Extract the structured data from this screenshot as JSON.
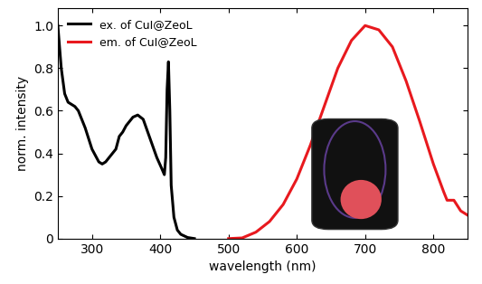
{
  "chart_data": {
    "type": "line",
    "x_label": "wavelength (nm)",
    "y_label": "norm. intensity",
    "xlim": [
      250,
      850
    ],
    "xticks": [
      300,
      400,
      500,
      600,
      700,
      800
    ],
    "ylim": [
      0,
      1.08
    ],
    "yticks": [
      0,
      0.2,
      0.4,
      0.6,
      0.8,
      1.0
    ],
    "legend": "upper left",
    "series": [
      {
        "name": "ex. of CuI@ZeoL",
        "color": "#000000",
        "x": [
          250,
          255,
          260,
          265,
          270,
          275,
          280,
          290,
          300,
          310,
          315,
          320,
          330,
          335,
          340,
          345,
          350,
          360,
          367,
          375,
          385,
          395,
          402,
          406,
          408,
          410,
          412,
          414,
          416,
          420,
          425,
          430,
          440,
          450
        ],
        "values": [
          1.0,
          0.8,
          0.68,
          0.64,
          0.63,
          0.62,
          0.6,
          0.52,
          0.42,
          0.36,
          0.35,
          0.36,
          0.4,
          0.42,
          0.48,
          0.5,
          0.53,
          0.57,
          0.58,
          0.56,
          0.47,
          0.38,
          0.33,
          0.3,
          0.38,
          0.7,
          0.83,
          0.6,
          0.25,
          0.1,
          0.04,
          0.02,
          0.005,
          0.0
        ]
      },
      {
        "name": "em. of CuI@ZeoL",
        "color": "#e8191e",
        "x": [
          500,
          520,
          540,
          560,
          580,
          600,
          620,
          640,
          660,
          680,
          700,
          720,
          740,
          760,
          780,
          800,
          815,
          820,
          830,
          840,
          850
        ],
        "values": [
          0.0,
          0.003,
          0.03,
          0.08,
          0.16,
          0.28,
          0.44,
          0.62,
          0.8,
          0.93,
          1.0,
          0.98,
          0.9,
          0.74,
          0.55,
          0.35,
          0.22,
          0.18,
          0.18,
          0.13,
          0.11
        ]
      }
    ]
  }
}
